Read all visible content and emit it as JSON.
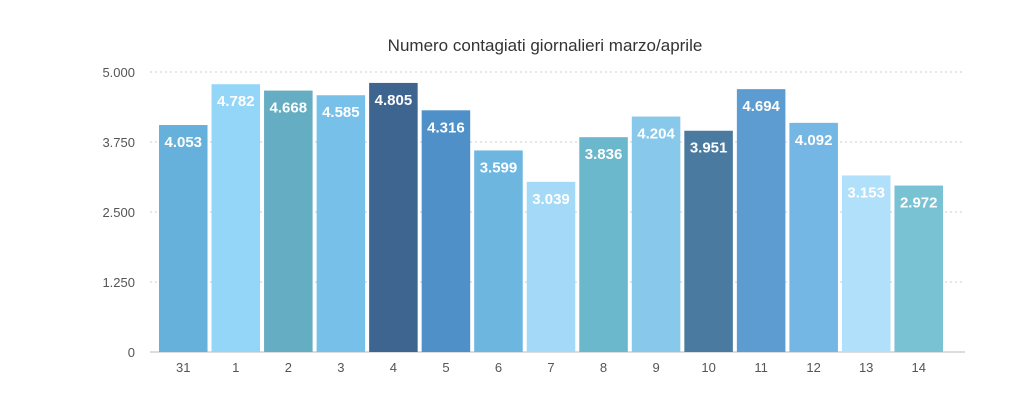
{
  "chart_data": {
    "type": "bar",
    "title": "Numero contagiati giornalieri marzo/aprile",
    "xlabel": "",
    "ylabel": "",
    "categories": [
      "31",
      "1",
      "2",
      "3",
      "4",
      "5",
      "6",
      "7",
      "8",
      "9",
      "10",
      "11",
      "12",
      "13",
      "14"
    ],
    "values": [
      4053,
      4782,
      4668,
      4585,
      4805,
      4316,
      3599,
      3039,
      3836,
      4204,
      3951,
      4694,
      4092,
      3153,
      2972
    ],
    "data_labels": [
      "4.053",
      "4.782",
      "4.668",
      "4.585",
      "4.805",
      "4.316",
      "3.599",
      "3.039",
      "3.836",
      "4.204",
      "3.951",
      "4.694",
      "4.092",
      "3.153",
      "2.972"
    ],
    "ylim": [
      0,
      5000
    ],
    "yticks": [
      0,
      1250,
      2500,
      3750,
      5000
    ],
    "ytick_labels": [
      "0",
      "1.250",
      "2.500",
      "3.750",
      "5.000"
    ],
    "grid": true,
    "legend": "none",
    "colors": [
      "#66b0dc",
      "#94d6f8",
      "#65adc2",
      "#77c0ea",
      "#3e6490",
      "#5090c8",
      "#6cb6e0",
      "#a4daf8",
      "#6bb8cc",
      "#88c8ea",
      "#4a7aa0",
      "#5c9cd0",
      "#74b6e4",
      "#b0e0fa",
      "#78c2d4"
    ]
  }
}
